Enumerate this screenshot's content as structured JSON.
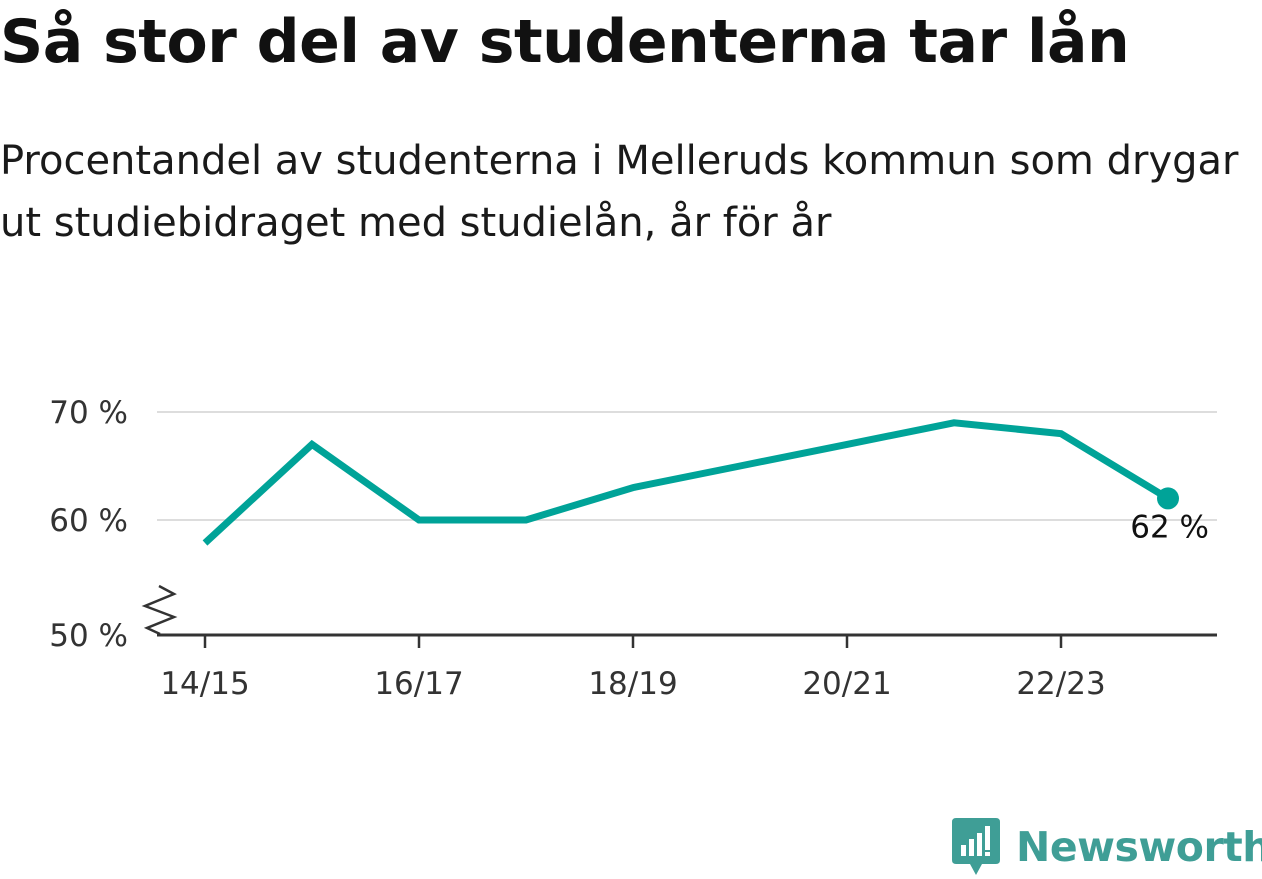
{
  "title": "Så stor del av studenterna tar lån",
  "subtitle": "Procentandel av studenterna i Melleruds kommun som drygar ut studiebidraget med studielån, år för år",
  "brand": {
    "name": "Newsworthy",
    "color": "#3f9e96",
    "icon": "bar-chart-speech-bubble-icon"
  },
  "chart_data": {
    "type": "line",
    "x": [
      "14/15",
      "15/16",
      "16/17",
      "17/18",
      "18/19",
      "19/20",
      "20/21",
      "21/22",
      "22/23",
      "23/24"
    ],
    "series": [
      {
        "values": [
          58,
          67,
          60,
          60,
          63,
          65,
          67,
          69,
          68,
          62
        ]
      }
    ],
    "x_tick_labels": [
      "14/15",
      "16/17",
      "18/19",
      "20/21",
      "22/23"
    ],
    "y_ticks": [
      {
        "value": 50,
        "label": "50 %"
      },
      {
        "value": 60,
        "label": "60 %"
      },
      {
        "value": 70,
        "label": "70 %"
      }
    ],
    "ylim": [
      50,
      70
    ],
    "y_axis_break": true,
    "grid": true,
    "end_label": "62 %",
    "colors": {
      "line": "#00a398",
      "grid": "#dddddd",
      "axis": "#333333"
    }
  }
}
